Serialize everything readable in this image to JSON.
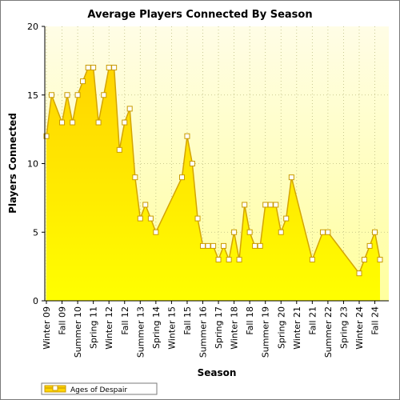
{
  "chart_data": {
    "type": "area",
    "title": "Average Players Connected By Season",
    "xlabel": "Season",
    "ylabel": "Players Connected",
    "ylim": [
      0,
      20
    ],
    "yticks": [
      0,
      5,
      10,
      15,
      20
    ],
    "categories": [
      "Winter 09",
      "Fall 09",
      "Summer 10",
      "Spring 11",
      "Winter 12",
      "Fall 12",
      "Summer 13",
      "Spring 14",
      "Winter 15",
      "Fall 15",
      "Summer 16",
      "Spring 17",
      "Winter 18",
      "Fall 18",
      "Summer 19",
      "Spring 20",
      "Winter 21",
      "Fall 21",
      "Summer 22",
      "Spring 23",
      "Winter 24",
      "Fall 24"
    ],
    "grid": true,
    "legend_position": "bottom-left",
    "series": [
      {
        "name": "Ages of Despair",
        "points": [
          [
            0,
            12
          ],
          [
            0.33,
            15
          ],
          [
            1,
            13
          ],
          [
            1.33,
            15
          ],
          [
            1.67,
            13
          ],
          [
            2,
            15
          ],
          [
            2.33,
            16
          ],
          [
            2.67,
            17
          ],
          [
            3,
            17
          ],
          [
            3.33,
            13
          ],
          [
            3.67,
            15
          ],
          [
            4,
            17
          ],
          [
            4.33,
            17
          ],
          [
            4.67,
            11
          ],
          [
            5,
            13
          ],
          [
            5.33,
            14
          ],
          [
            5.67,
            9
          ],
          [
            6,
            6
          ],
          [
            6.33,
            7
          ],
          [
            6.67,
            6
          ],
          [
            7,
            5
          ],
          [
            8.67,
            9
          ],
          [
            9,
            12
          ],
          [
            9.33,
            10
          ],
          [
            9.67,
            6
          ],
          [
            10,
            4
          ],
          [
            10.33,
            4
          ],
          [
            10.67,
            4
          ],
          [
            11,
            3
          ],
          [
            11.33,
            4
          ],
          [
            11.67,
            3
          ],
          [
            12,
            5
          ],
          [
            12.33,
            3
          ],
          [
            12.67,
            7
          ],
          [
            13,
            5
          ],
          [
            13.33,
            4
          ],
          [
            13.67,
            4
          ],
          [
            14,
            7
          ],
          [
            14.33,
            7
          ],
          [
            14.67,
            7
          ],
          [
            15,
            5
          ],
          [
            15.33,
            6
          ],
          [
            15.67,
            9
          ],
          [
            17,
            3
          ],
          [
            17.67,
            5
          ],
          [
            18,
            5
          ],
          [
            20,
            2
          ],
          [
            20.33,
            3
          ],
          [
            20.67,
            4
          ],
          [
            21,
            5
          ],
          [
            21.33,
            3
          ]
        ]
      }
    ]
  },
  "colors": {
    "plot_bg_top": "#fffde6",
    "plot_bg_bottom": "#ffff9e",
    "area_top": "#ffd400",
    "area_bottom": "#ffff00",
    "line": "#d4a500",
    "marker_fill": "#ffffff",
    "marker_stroke": "#c99a00",
    "grid": "#bcbc80"
  }
}
